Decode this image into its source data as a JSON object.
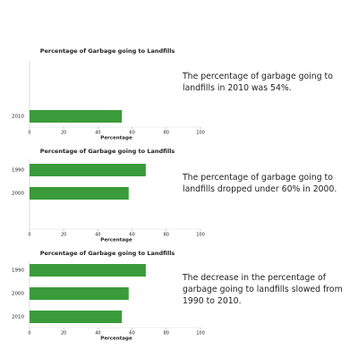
{
  "chart_data": [
    {
      "type": "bar",
      "orientation": "horizontal",
      "title": "Percentage of Garbage going to Landfills",
      "categories": [
        "2010"
      ],
      "values": [
        54
      ],
      "color": "#3a9b3a",
      "xlim": [
        0,
        100
      ],
      "xticks": [
        0,
        20,
        40,
        60,
        80,
        100
      ],
      "xlabel": "Percentage",
      "annotation": "The percentage of garbage going to landfills in 2010 was 54%."
    },
    {
      "type": "bar",
      "orientation": "horizontal",
      "title": "Percentage of Garbage going to Landfills",
      "categories": [
        "1990",
        "2000"
      ],
      "values": [
        68,
        58
      ],
      "color": "#3a9b3a",
      "xlim": [
        0,
        100
      ],
      "xticks": [
        0,
        20,
        40,
        60,
        80,
        100
      ],
      "xlabel": "Percentage",
      "annotation": "The percentage of garbage going to landfills dropped under 60% in 2000."
    },
    {
      "type": "bar",
      "orientation": "horizontal",
      "title": "Percentage of Garbage going to Landfills",
      "categories": [
        "1990",
        "2000",
        "2010"
      ],
      "values": [
        68,
        58,
        54
      ],
      "color": "#3a9b3a",
      "xlim": [
        0,
        100
      ],
      "xticks": [
        0,
        20,
        40,
        60,
        80,
        100
      ],
      "xlabel": "Percentage",
      "annotation": "The decrease in the percentage of garbage going to landfills slowed from 1990 to 2010."
    }
  ]
}
